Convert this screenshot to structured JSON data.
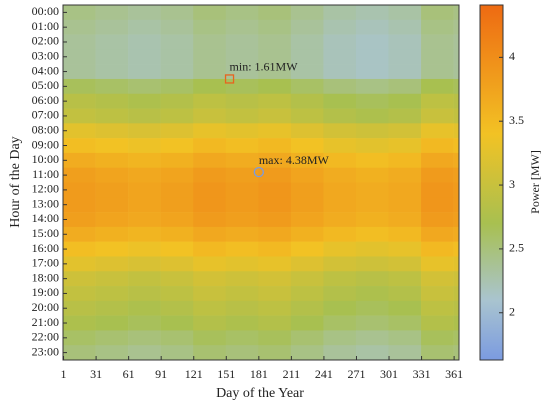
{
  "chart_data": {
    "type": "heatmap",
    "xlabel": "Day of the Year",
    "ylabel": "Hour of the Day",
    "colorbar_label": "Power [MW]",
    "x_bins": [
      0.5,
      30.5,
      60.5,
      90.5,
      120.5,
      150.5,
      180.5,
      210.5,
      240.5,
      270.5,
      300.5,
      330.5,
      360.5,
      365.5
    ],
    "xlim": [
      0.5,
      365.5
    ],
    "xticks": [
      1,
      31,
      61,
      91,
      121,
      151,
      181,
      211,
      241,
      271,
      301,
      331,
      361
    ],
    "y": [
      0,
      1,
      2,
      3,
      4,
      5,
      6,
      7,
      8,
      9,
      10,
      11,
      12,
      13,
      14,
      15,
      16,
      17,
      18,
      19,
      20,
      21,
      22,
      23
    ],
    "ylim": [
      -0.5,
      23.5
    ],
    "yticks": [
      {
        "value": 0,
        "label": "00:00"
      },
      {
        "value": 1,
        "label": "01:00"
      },
      {
        "value": 2,
        "label": "02:00"
      },
      {
        "value": 3,
        "label": "03:00"
      },
      {
        "value": 4,
        "label": "04:00"
      },
      {
        "value": 5,
        "label": "05:00"
      },
      {
        "value": 6,
        "label": "06:00"
      },
      {
        "value": 7,
        "label": "07:00"
      },
      {
        "value": 8,
        "label": "08:00"
      },
      {
        "value": 9,
        "label": "09:00"
      },
      {
        "value": 10,
        "label": "10:00"
      },
      {
        "value": 11,
        "label": "11:00"
      },
      {
        "value": 12,
        "label": "12:00"
      },
      {
        "value": 13,
        "label": "13:00"
      },
      {
        "value": 14,
        "label": "14:00"
      },
      {
        "value": 15,
        "label": "15:00"
      },
      {
        "value": 16,
        "label": "16:00"
      },
      {
        "value": 17,
        "label": "17:00"
      },
      {
        "value": 18,
        "label": "18:00"
      },
      {
        "value": 19,
        "label": "19:00"
      },
      {
        "value": 20,
        "label": "20:00"
      },
      {
        "value": 21,
        "label": "21:00"
      },
      {
        "value": 22,
        "label": "22:00"
      },
      {
        "value": 23,
        "label": "23:00"
      }
    ],
    "clim": [
      1.63,
      4.41
    ],
    "cticks": [
      2,
      {
        "value": 2.5,
        "label": "2.5"
      },
      3,
      {
        "value": 3.5,
        "label": "3.5"
      },
      4
    ],
    "colormap": [
      {
        "value": 1.63,
        "color": "#7b9be0"
      },
      {
        "value": 2.1,
        "color": "#a9c4cf"
      },
      {
        "value": 2.7,
        "color": "#a8c050"
      },
      {
        "value": 3.4,
        "color": "#f2c224"
      },
      {
        "value": 4.41,
        "color": "#ee6a12"
      }
    ],
    "values": [
      [
        2.45,
        2.4,
        2.35,
        2.4,
        2.5,
        2.45,
        2.5,
        2.4,
        2.3,
        2.25,
        2.3,
        2.5,
        2.45
      ],
      [
        2.4,
        2.35,
        2.3,
        2.35,
        2.45,
        2.4,
        2.45,
        2.35,
        2.25,
        2.2,
        2.25,
        2.45,
        2.4
      ],
      [
        2.35,
        2.3,
        2.25,
        2.3,
        2.4,
        2.35,
        2.4,
        2.3,
        2.2,
        2.15,
        2.2,
        2.4,
        2.35
      ],
      [
        2.35,
        2.3,
        2.25,
        2.3,
        2.4,
        2.35,
        2.4,
        2.3,
        2.2,
        2.15,
        2.2,
        2.4,
        2.35
      ],
      [
        2.35,
        2.3,
        2.25,
        2.3,
        2.4,
        2.35,
        2.4,
        2.3,
        2.2,
        2.15,
        2.2,
        2.4,
        2.35
      ],
      [
        2.65,
        2.6,
        2.55,
        2.6,
        2.7,
        2.65,
        2.7,
        2.6,
        2.5,
        2.45,
        2.5,
        2.7,
        2.65
      ],
      [
        2.85,
        2.8,
        2.75,
        2.8,
        2.9,
        2.85,
        2.9,
        2.8,
        2.7,
        2.65,
        2.7,
        2.9,
        2.85
      ],
      [
        2.95,
        2.9,
        2.85,
        2.9,
        3,
        2.95,
        3,
        2.9,
        2.8,
        2.75,
        2.8,
        3,
        2.95
      ],
      [
        3.25,
        3.2,
        3.15,
        3.2,
        3.3,
        3.25,
        3.3,
        3.2,
        3.1,
        3.05,
        3.1,
        3.3,
        3.25
      ],
      [
        3.45,
        3.4,
        3.35,
        3.4,
        3.5,
        3.45,
        3.5,
        3.4,
        3.3,
        3.25,
        3.3,
        3.5,
        3.45
      ],
      [
        3.65,
        3.6,
        3.55,
        3.6,
        3.7,
        3.65,
        3.7,
        3.6,
        3.5,
        3.45,
        3.5,
        3.7,
        3.65
      ],
      [
        3.8,
        3.75,
        3.7,
        3.75,
        3.85,
        3.8,
        3.85,
        3.75,
        3.65,
        3.6,
        3.65,
        3.85,
        3.8
      ],
      [
        3.85,
        3.8,
        3.75,
        3.8,
        3.9,
        3.85,
        3.9,
        3.8,
        3.7,
        3.65,
        3.7,
        3.9,
        3.85
      ],
      [
        3.85,
        3.8,
        3.75,
        3.8,
        3.9,
        3.85,
        3.9,
        3.8,
        3.7,
        3.65,
        3.7,
        3.9,
        3.85
      ],
      [
        3.8,
        3.75,
        3.7,
        3.75,
        3.85,
        3.8,
        3.85,
        3.75,
        3.65,
        3.6,
        3.65,
        3.85,
        3.8
      ],
      [
        3.65,
        3.6,
        3.55,
        3.6,
        3.7,
        3.65,
        3.7,
        3.6,
        3.5,
        3.45,
        3.5,
        3.7,
        3.65
      ],
      [
        3.45,
        3.4,
        3.35,
        3.4,
        3.5,
        3.45,
        3.5,
        3.4,
        3.3,
        3.25,
        3.3,
        3.5,
        3.45
      ],
      [
        3.25,
        3.2,
        3.15,
        3.2,
        3.3,
        3.25,
        3.3,
        3.2,
        3.1,
        3.05,
        3.1,
        3.3,
        3.25
      ],
      [
        3.05,
        3,
        2.95,
        3,
        3.1,
        3.05,
        3.1,
        3,
        2.9,
        2.85,
        2.9,
        3.1,
        3.05
      ],
      [
        2.95,
        2.9,
        2.85,
        2.9,
        3,
        2.95,
        3,
        2.9,
        2.8,
        2.75,
        2.8,
        3,
        2.95
      ],
      [
        2.85,
        2.8,
        2.75,
        2.8,
        2.9,
        2.85,
        2.9,
        2.8,
        2.7,
        2.65,
        2.7,
        2.9,
        2.85
      ],
      [
        2.75,
        2.7,
        2.65,
        2.7,
        2.8,
        2.75,
        2.8,
        2.7,
        2.6,
        2.55,
        2.6,
        2.8,
        2.75
      ],
      [
        2.6,
        2.55,
        2.5,
        2.55,
        2.65,
        2.6,
        2.65,
        2.55,
        2.45,
        2.4,
        2.45,
        2.65,
        2.6
      ],
      [
        2.5,
        2.45,
        2.4,
        2.45,
        2.55,
        2.5,
        2.55,
        2.45,
        2.35,
        2.3,
        2.35,
        2.55,
        2.5
      ]
    ],
    "annotations": [
      {
        "text": "min: 1.61MW",
        "x": 154,
        "y": 4.5,
        "marker": "square",
        "color": "#e8641e"
      },
      {
        "text": "max: 4.38MW",
        "x": 181,
        "y": 10.8,
        "marker": "circle",
        "color": "#7b9be0"
      }
    ]
  }
}
